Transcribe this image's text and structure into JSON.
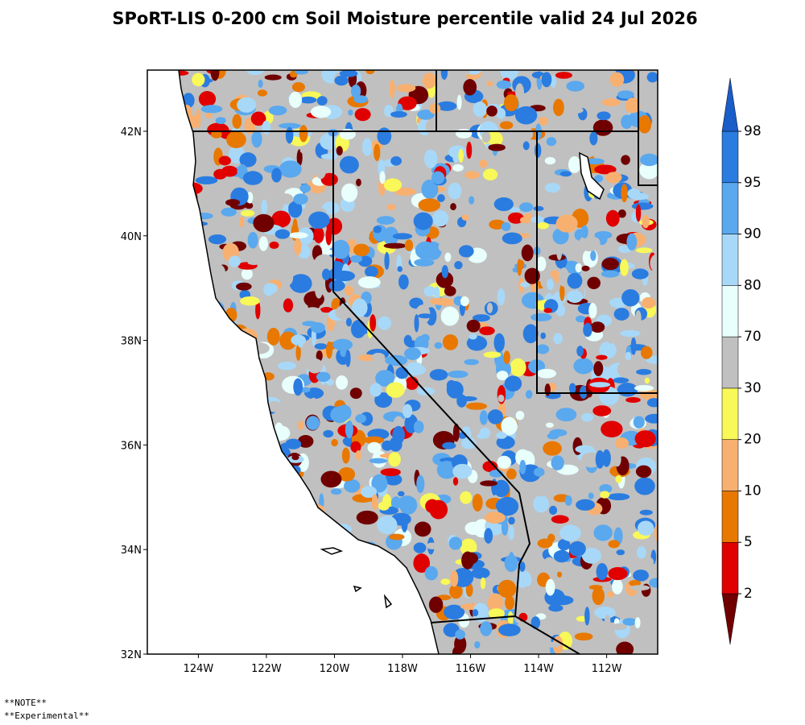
{
  "title": "SPoRT-LIS 0-200 cm Soil Moisture percentile valid 24 Jul 2026",
  "map": {
    "lon_range": [
      -125.5,
      -110.5
    ],
    "lat_range": [
      32,
      43.17
    ],
    "lat_ticks": [
      {
        "value": 42,
        "label": "42N"
      },
      {
        "value": 40,
        "label": "40N"
      },
      {
        "value": 38,
        "label": "38N"
      },
      {
        "value": 36,
        "label": "36N"
      },
      {
        "value": 34,
        "label": "34N"
      },
      {
        "value": 32,
        "label": "32N"
      }
    ],
    "lon_ticks": [
      {
        "value": -124,
        "label": "124W"
      },
      {
        "value": -122,
        "label": "122W"
      },
      {
        "value": -120,
        "label": "120W"
      },
      {
        "value": -118,
        "label": "118W"
      },
      {
        "value": -116,
        "label": "116W"
      },
      {
        "value": -114,
        "label": "114W"
      },
      {
        "value": -112,
        "label": "112W"
      }
    ]
  },
  "colorbar": {
    "ticks": [
      2,
      5,
      10,
      20,
      30,
      70,
      80,
      90,
      95,
      98
    ],
    "colors": [
      "#700000",
      "#e00000",
      "#e87800",
      "#f8b070",
      "#f8f858",
      "#c0c0c0",
      "#e8fffc",
      "#a8d8f8",
      "#5aa8ee",
      "#2a7ce0",
      "#1a5cc8"
    ]
  },
  "notes": [
    "**NOTE**",
    "**Experimental**"
  ]
}
